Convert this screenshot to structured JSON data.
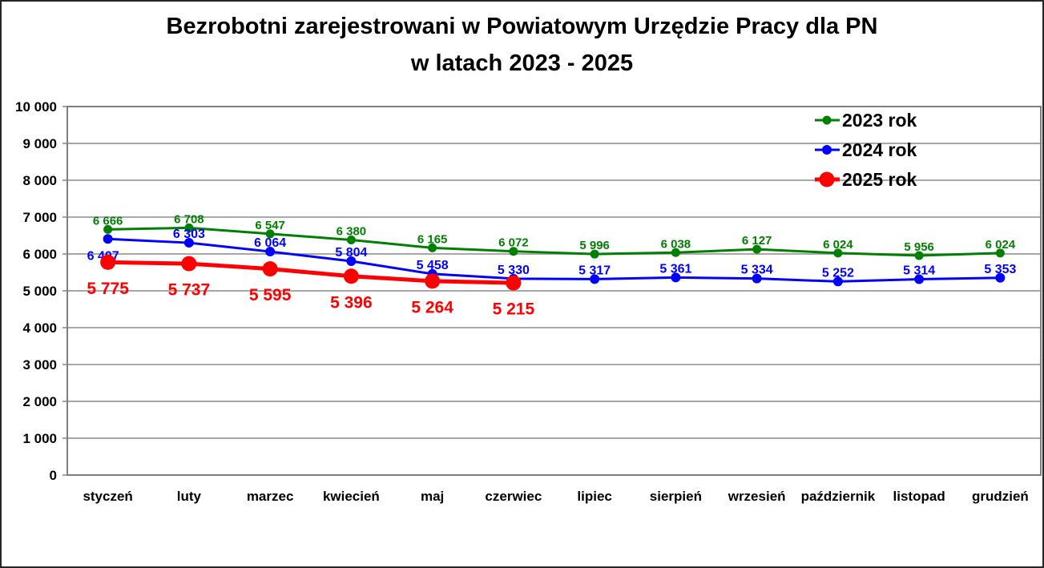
{
  "page": {
    "background_color": "#ffffff",
    "border_color": "#262626"
  },
  "chart_data": {
    "type": "line",
    "title": "Bezrobotni zarejestrowani w Powiatowym Urzędzie Pracy dla PN",
    "subtitle": "w latach 2023 - 2025",
    "categories": [
      "styczeń",
      "luty",
      "marzec",
      "kwiecień",
      "maj",
      "czerwiec",
      "lipiec",
      "sierpień",
      "wrzesień",
      "październik",
      "listopad",
      "grudzień"
    ],
    "ylim": [
      0,
      10000
    ],
    "ytick_step": 1000,
    "ytick_labels": [
      "0",
      "1 000",
      "2 000",
      "3 000",
      "4 000",
      "5 000",
      "6 000",
      "7 000",
      "8 000",
      "9 000",
      "10 000"
    ],
    "grid": "horizontal",
    "grid_color": "#9b9b9b",
    "axis_label_color": "#000000",
    "legend_position": "top-right-inside",
    "series": [
      {
        "name": "2023 rok",
        "color": "#008000",
        "line_width": 3,
        "marker_radius": 5.5,
        "label_font_size": 15,
        "label_position": "above",
        "values": [
          6666,
          6708,
          6547,
          6380,
          6165,
          6072,
          5996,
          6038,
          6127,
          6024,
          5956,
          6024
        ],
        "labels": [
          "6 666",
          "6 708",
          "6 547",
          "6 380",
          "6 165",
          "6 072",
          "5 996",
          "6 038",
          "6 127",
          "6 024",
          "5 956",
          "6 024"
        ]
      },
      {
        "name": "2024 rok",
        "color": "#0000ff",
        "line_width": 3,
        "marker_radius": 6,
        "label_font_size": 16,
        "label_position": "above",
        "label_overrides": {
          "0": {
            "position": "below",
            "dx": -6
          }
        },
        "values": [
          6407,
          6303,
          6064,
          5804,
          5458,
          5330,
          5317,
          5361,
          5334,
          5252,
          5314,
          5353
        ],
        "labels": [
          "6 407",
          "6 303",
          "6 064",
          "5 804",
          "5 458",
          "5 330",
          "5 317",
          "5 361",
          "5 334",
          "5 252",
          "5 314",
          "5 353"
        ]
      },
      {
        "name": "2025 rok",
        "color": "#ff0000",
        "line_width": 5,
        "marker_radius": 9.5,
        "label_font_size": 21,
        "label_position": "below",
        "values": [
          5775,
          5737,
          5595,
          5396,
          5264,
          5215
        ],
        "labels": [
          "5 775",
          "5 737",
          "5 595",
          "5 396",
          "5 264",
          "5 215"
        ]
      }
    ]
  }
}
